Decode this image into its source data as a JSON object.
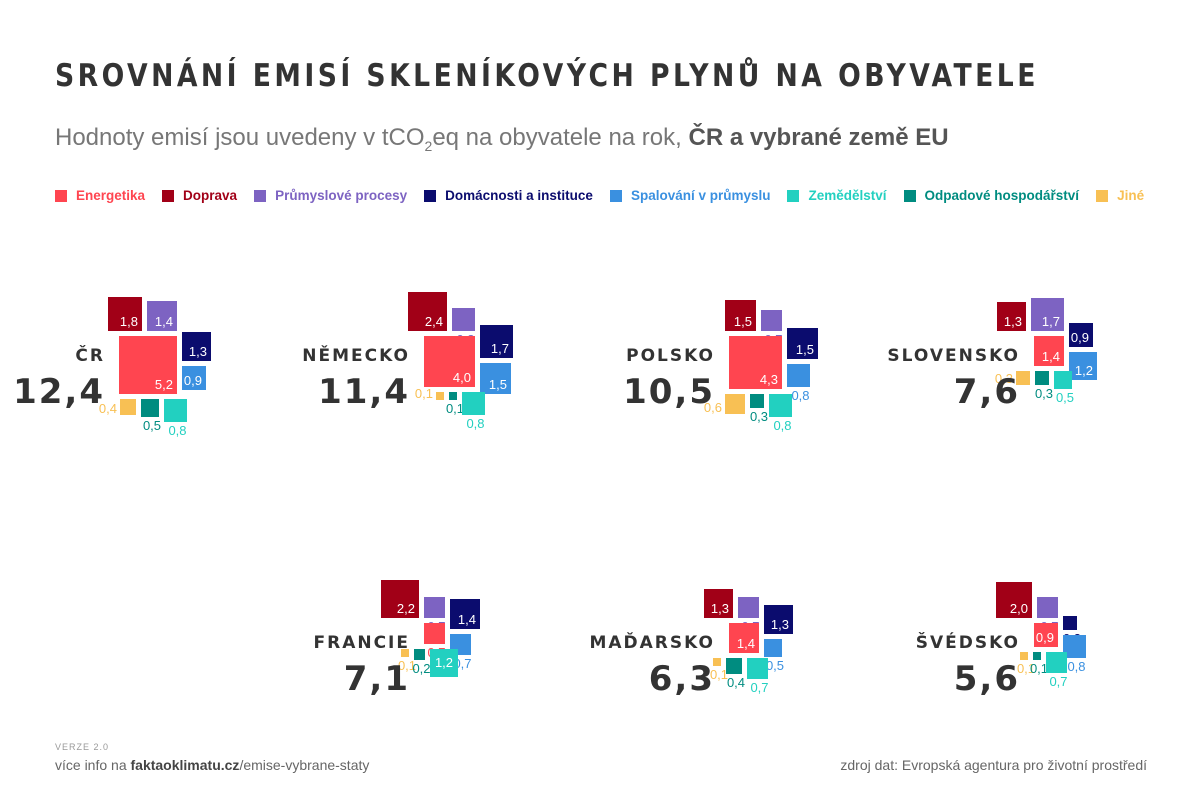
{
  "title": "SROVNÁNÍ EMISÍ SKLENÍKOVÝCH PLYNŮ NA OBYVATELE",
  "subtitle": {
    "pre": "Hodnoty emisí jsou uvedeny v tCO",
    "sub": "2",
    "post": "eq na obyvatele na rok, ",
    "bold": "ČR a vybrané země EU"
  },
  "footer": {
    "version": "VERZE 2.0",
    "info_pre": "více info na ",
    "info_bold": "faktaoklimatu.cz",
    "info_post": "/emise-vybrane-staty",
    "source": "zdroj dat: Evropská agentura pro životní prostředí"
  },
  "chart_data": {
    "type": "treemap-squares",
    "unit": "tCO2eq na obyvatele na rok",
    "categories": [
      {
        "key": "energetika",
        "name": "Energetika",
        "color": "#ff4550"
      },
      {
        "key": "doprava",
        "name": "Doprava",
        "color": "#a10017"
      },
      {
        "key": "prumysl_procesy",
        "name": "Průmyslové procesy",
        "color": "#7d63c2"
      },
      {
        "key": "domacnosti",
        "name": "Domácnosti a instituce",
        "color": "#0b0c6e"
      },
      {
        "key": "spalovani",
        "name": "Spalování v průmyslu",
        "color": "#3a90e0"
      },
      {
        "key": "zemedelstvi",
        "name": "Zemědělství",
        "color": "#22d0c0"
      },
      {
        "key": "odpady",
        "name": "Odpadové hospodářství",
        "color": "#008c80"
      },
      {
        "key": "jine",
        "name": "Jiné",
        "color": "#f8c054"
      }
    ],
    "countries": [
      {
        "name": "ČR",
        "total": "12,4",
        "values": {
          "energetika": "5,2",
          "doprava": "1,8",
          "prumysl_procesy": "1,4",
          "domacnosti": "1,3",
          "spalovani": "0,9",
          "zemedelstvi": "0,8",
          "odpady": "0,5",
          "jine": "0,4"
        }
      },
      {
        "name": "NĚMECKO",
        "total": "11,4",
        "values": {
          "energetika": "4,0",
          "doprava": "2,4",
          "prumysl_procesy": "0,8",
          "domacnosti": "1,7",
          "spalovani": "1,5",
          "zemedelstvi": "0,8",
          "odpady": "0,1",
          "jine": "0,1"
        }
      },
      {
        "name": "POLSKO",
        "total": "10,5",
        "values": {
          "energetika": "4,3",
          "doprava": "1,5",
          "prumysl_procesy": "0,7",
          "domacnosti": "1,5",
          "spalovani": "0,8",
          "zemedelstvi": "0,8",
          "odpady": "0,3",
          "jine": "0,6"
        }
      },
      {
        "name": "SLOVENSKO",
        "total": "7,6",
        "values": {
          "energetika": "1,4",
          "doprava": "1,3",
          "prumysl_procesy": "1,7",
          "domacnosti": "0,9",
          "spalovani": "1,2",
          "zemedelstvi": "0,5",
          "odpady": "0,3",
          "jine": "0,3"
        }
      },
      {
        "name": "FRANCIE",
        "total": "7,1",
        "values": {
          "energetika": "0,7",
          "doprava": "2,2",
          "prumysl_procesy": "0,7",
          "domacnosti": "1,4",
          "spalovani": "0,7",
          "zemedelstvi": "1,2",
          "odpady": "0,2",
          "jine": "0,1"
        }
      },
      {
        "name": "MAĎARSKO",
        "total": "6,3",
        "values": {
          "energetika": "1,4",
          "doprava": "1,3",
          "prumysl_procesy": "0,7",
          "domacnosti": "1,3",
          "spalovani": "0,5",
          "zemedelstvi": "0,7",
          "odpady": "0,4",
          "jine": "0,1"
        }
      },
      {
        "name": "ŠVÉDSKO",
        "total": "5,6",
        "values": {
          "energetika": "0,9",
          "doprava": "2,0",
          "prumysl_procesy": "0,7",
          "domacnosti": "0,3",
          "spalovani": "0,8",
          "zemedelstvi": "0,7",
          "odpady": "0,1",
          "jine": "0,1"
        }
      }
    ]
  }
}
